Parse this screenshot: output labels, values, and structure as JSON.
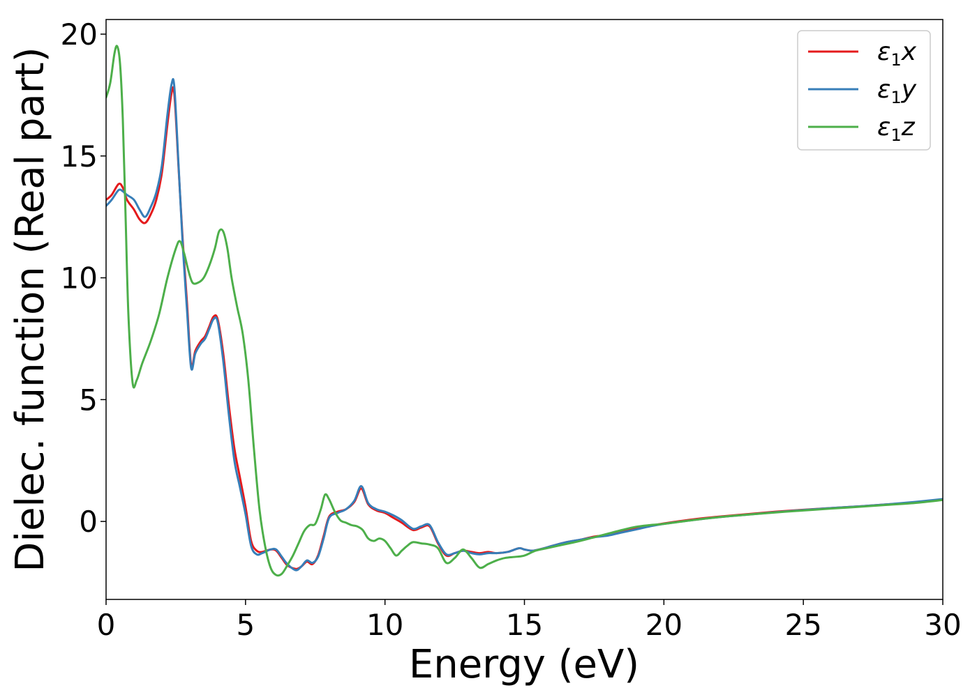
{
  "chart_data": {
    "type": "line",
    "xlabel": "Energy (eV)",
    "ylabel": "Dielec. function (Real part)",
    "xlim": [
      0,
      30
    ],
    "ylim": [
      -3.2,
      20.6
    ],
    "xticks": [
      0,
      5,
      10,
      15,
      20,
      25,
      30
    ],
    "yticks": [
      0,
      5,
      10,
      15,
      20
    ],
    "grid": false,
    "legend_position": "top-right",
    "series": [
      {
        "name": "ε1x",
        "legend": {
          "base": "ε",
          "sub": "1",
          "var": "x"
        },
        "color": "#e41a1c",
        "x": [
          0,
          0.2,
          0.45,
          0.6,
          0.75,
          1.0,
          1.2,
          1.4,
          1.6,
          1.8,
          2.0,
          2.2,
          2.35,
          2.45,
          2.6,
          2.75,
          2.9,
          3.05,
          3.2,
          3.4,
          3.55,
          3.7,
          3.85,
          4.0,
          4.2,
          4.4,
          4.6,
          4.8,
          5.0,
          5.2,
          5.4,
          5.6,
          5.9,
          6.1,
          6.3,
          6.5,
          6.8,
          7.0,
          7.2,
          7.4,
          7.6,
          7.8,
          8.0,
          8.3,
          8.6,
          8.9,
          9.15,
          9.4,
          9.7,
          10.0,
          10.3,
          10.6,
          11.0,
          11.3,
          11.6,
          11.9,
          12.2,
          12.5,
          12.8,
          13.1,
          13.4,
          13.7,
          14.0,
          14.4,
          14.8,
          15.0,
          15.3,
          15.7,
          16.0,
          16.5,
          17.0,
          17.5,
          18.0,
          18.5,
          19.0,
          19.5,
          20.0,
          21.0,
          22.0,
          23.0,
          24.0,
          25.0,
          26.0,
          27.0,
          28.0,
          29.0,
          30.0
        ],
        "y": [
          13.2,
          13.4,
          13.85,
          13.7,
          13.2,
          12.8,
          12.4,
          12.25,
          12.6,
          13.2,
          14.3,
          16.3,
          17.6,
          17.5,
          14.5,
          11.5,
          9.0,
          6.4,
          7.0,
          7.4,
          7.6,
          8.0,
          8.4,
          8.3,
          6.9,
          4.8,
          3.0,
          1.8,
          0.6,
          -0.8,
          -1.2,
          -1.25,
          -1.15,
          -1.2,
          -1.5,
          -1.8,
          -1.95,
          -1.85,
          -1.65,
          -1.75,
          -1.4,
          -0.6,
          0.2,
          0.4,
          0.5,
          0.8,
          1.35,
          0.7,
          0.45,
          0.35,
          0.15,
          -0.05,
          -0.35,
          -0.25,
          -0.2,
          -0.9,
          -1.4,
          -1.3,
          -1.2,
          -1.25,
          -1.3,
          -1.25,
          -1.3,
          -1.25,
          -1.1,
          -1.15,
          -1.2,
          -1.1,
          -1.0,
          -0.85,
          -0.75,
          -0.62,
          -0.55,
          -0.42,
          -0.3,
          -0.18,
          -0.08,
          0.08,
          0.2,
          0.3,
          0.4,
          0.48,
          0.55,
          0.62,
          0.7,
          0.78,
          0.9
        ]
      },
      {
        "name": "ε1y",
        "legend": {
          "base": "ε",
          "sub": "1",
          "var": "y"
        },
        "color": "#377eb8",
        "x": [
          0,
          0.2,
          0.45,
          0.6,
          0.75,
          1.0,
          1.2,
          1.4,
          1.6,
          1.8,
          2.0,
          2.2,
          2.35,
          2.45,
          2.6,
          2.75,
          2.9,
          3.05,
          3.2,
          3.4,
          3.55,
          3.7,
          3.85,
          4.0,
          4.2,
          4.4,
          4.6,
          4.8,
          5.0,
          5.2,
          5.4,
          5.6,
          5.9,
          6.1,
          6.3,
          6.5,
          6.8,
          7.0,
          7.2,
          7.4,
          7.6,
          7.8,
          8.0,
          8.3,
          8.6,
          8.9,
          9.15,
          9.4,
          9.7,
          10.0,
          10.3,
          10.6,
          11.0,
          11.3,
          11.6,
          11.9,
          12.2,
          12.5,
          12.8,
          13.1,
          13.4,
          13.7,
          14.0,
          14.4,
          14.8,
          15.0,
          15.3,
          15.7,
          16.0,
          16.5,
          17.0,
          17.5,
          18.0,
          18.5,
          19.0,
          19.5,
          20.0,
          21.0,
          22.0,
          23.0,
          24.0,
          25.0,
          26.0,
          27.0,
          28.0,
          29.0,
          30.0
        ],
        "y": [
          12.95,
          13.2,
          13.6,
          13.55,
          13.4,
          13.2,
          12.8,
          12.5,
          12.9,
          13.5,
          14.6,
          16.7,
          17.95,
          17.8,
          14.6,
          11.3,
          8.7,
          6.3,
          6.9,
          7.3,
          7.5,
          7.9,
          8.3,
          8.2,
          6.6,
          4.4,
          2.5,
          1.4,
          0.3,
          -1.0,
          -1.35,
          -1.3,
          -1.15,
          -1.15,
          -1.45,
          -1.75,
          -2.0,
          -1.85,
          -1.6,
          -1.7,
          -1.45,
          -0.7,
          0.15,
          0.35,
          0.5,
          0.85,
          1.45,
          0.75,
          0.5,
          0.4,
          0.25,
          0.05,
          -0.3,
          -0.2,
          -0.15,
          -0.85,
          -1.35,
          -1.3,
          -1.2,
          -1.3,
          -1.35,
          -1.3,
          -1.3,
          -1.25,
          -1.1,
          -1.15,
          -1.2,
          -1.1,
          -1.0,
          -0.85,
          -0.75,
          -0.65,
          -0.58,
          -0.45,
          -0.33,
          -0.2,
          -0.1,
          0.05,
          0.18,
          0.28,
          0.38,
          0.47,
          0.55,
          0.62,
          0.7,
          0.8,
          0.92
        ]
      },
      {
        "name": "ε1z",
        "legend": {
          "base": "ε",
          "sub": "1",
          "var": "z"
        },
        "color": "#4daf4a",
        "x": [
          0,
          0.15,
          0.3,
          0.4,
          0.5,
          0.6,
          0.7,
          0.8,
          0.95,
          1.1,
          1.3,
          1.6,
          1.9,
          2.2,
          2.5,
          2.65,
          2.8,
          2.95,
          3.1,
          3.3,
          3.5,
          3.7,
          3.9,
          4.05,
          4.2,
          4.35,
          4.5,
          4.7,
          4.9,
          5.1,
          5.3,
          5.5,
          5.7,
          5.9,
          6.1,
          6.3,
          6.5,
          6.7,
          6.9,
          7.1,
          7.3,
          7.5,
          7.7,
          7.85,
          8.0,
          8.2,
          8.4,
          8.6,
          8.8,
          9.0,
          9.2,
          9.4,
          9.6,
          9.8,
          10.0,
          10.2,
          10.4,
          10.6,
          10.8,
          11.0,
          11.3,
          11.6,
          11.9,
          12.2,
          12.5,
          12.8,
          13.1,
          13.4,
          13.7,
          14.0,
          14.3,
          14.7,
          15.0,
          15.4,
          15.8,
          16.2,
          16.6,
          17.0,
          17.5,
          18.0,
          18.5,
          19.0,
          19.5,
          20.0,
          21.0,
          22.0,
          23.0,
          24.0,
          25.0,
          26.0,
          27.0,
          28.0,
          29.0,
          30.0
        ],
        "y": [
          17.4,
          18.0,
          19.2,
          19.5,
          18.8,
          16.5,
          12.5,
          8.5,
          5.7,
          5.8,
          6.5,
          7.4,
          8.5,
          10.0,
          11.2,
          11.5,
          11.0,
          10.3,
          9.8,
          9.8,
          10.0,
          10.5,
          11.2,
          11.9,
          11.9,
          11.2,
          10.0,
          8.8,
          7.7,
          5.8,
          3.0,
          0.5,
          -1.0,
          -1.9,
          -2.2,
          -2.15,
          -1.8,
          -1.4,
          -0.9,
          -0.4,
          -0.15,
          -0.1,
          0.5,
          1.1,
          0.9,
          0.4,
          0.05,
          -0.05,
          -0.15,
          -0.2,
          -0.35,
          -0.7,
          -0.8,
          -0.7,
          -0.8,
          -1.1,
          -1.4,
          -1.2,
          -1.0,
          -0.85,
          -0.9,
          -0.95,
          -1.1,
          -1.7,
          -1.5,
          -1.15,
          -1.5,
          -1.9,
          -1.75,
          -1.6,
          -1.5,
          -1.45,
          -1.4,
          -1.2,
          -1.1,
          -1.0,
          -0.9,
          -0.8,
          -0.65,
          -0.5,
          -0.35,
          -0.22,
          -0.15,
          -0.1,
          0.05,
          0.18,
          0.28,
          0.37,
          0.45,
          0.53,
          0.6,
          0.68,
          0.76,
          0.88
        ]
      }
    ]
  }
}
